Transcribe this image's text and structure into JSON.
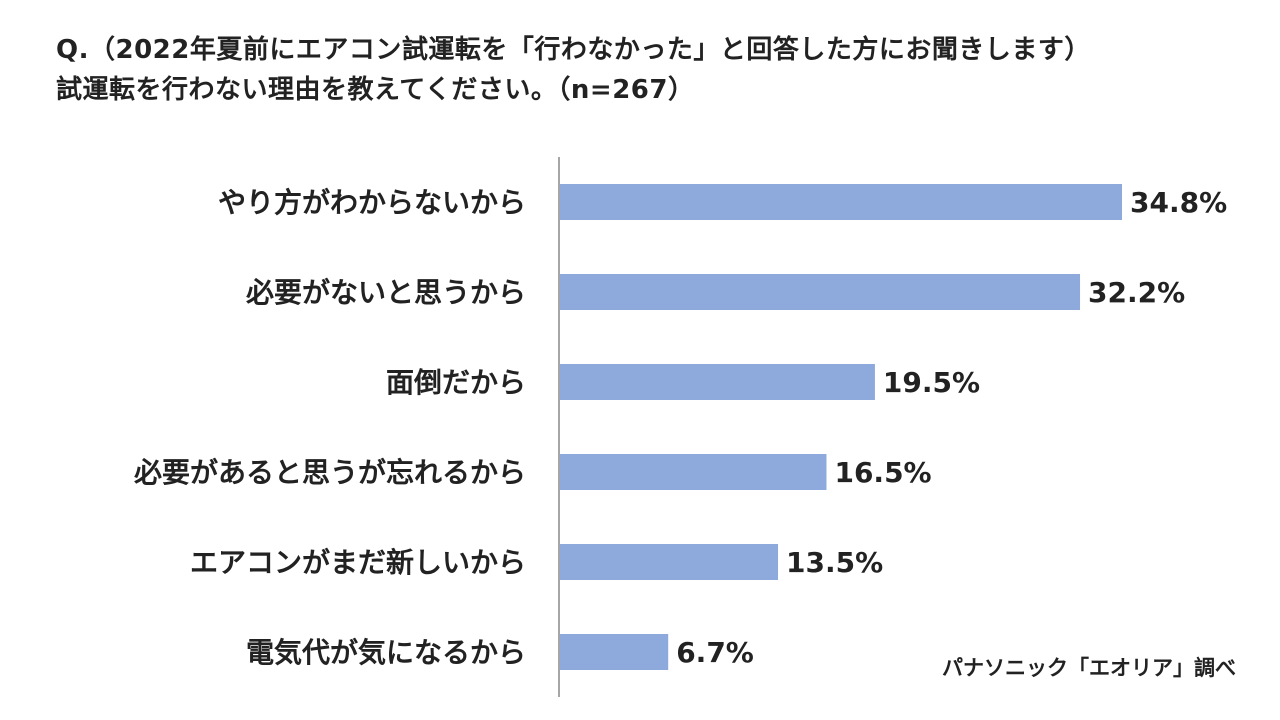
{
  "question": {
    "line1": "Q.（2022年夏前にエアコン試運転を「行わなかった」と回答した方にお聞きします）",
    "line2": "試運転を行わない理由を教えてください。（n=267）"
  },
  "source": "パナソニック「エオリア」調べ",
  "colors": {
    "bar": "#8EA9DB",
    "axis": "#888888",
    "text": "#222222"
  },
  "chart_data": {
    "type": "bar",
    "orientation": "horizontal",
    "categories": [
      "やり方がわからないから",
      "必要がないと思うから",
      "面倒だから",
      "必要があると思うが忘れるから",
      "エアコンがまだ新しいから",
      "電気代が気になるから"
    ],
    "values": [
      34.8,
      32.2,
      19.5,
      16.5,
      13.5,
      6.7
    ],
    "value_labels": [
      "34.8%",
      "32.2%",
      "19.5%",
      "16.5%",
      "13.5%",
      "6.7%"
    ],
    "unit": "%",
    "xlim": [
      0,
      40
    ],
    "grid": false,
    "legend": "none"
  }
}
